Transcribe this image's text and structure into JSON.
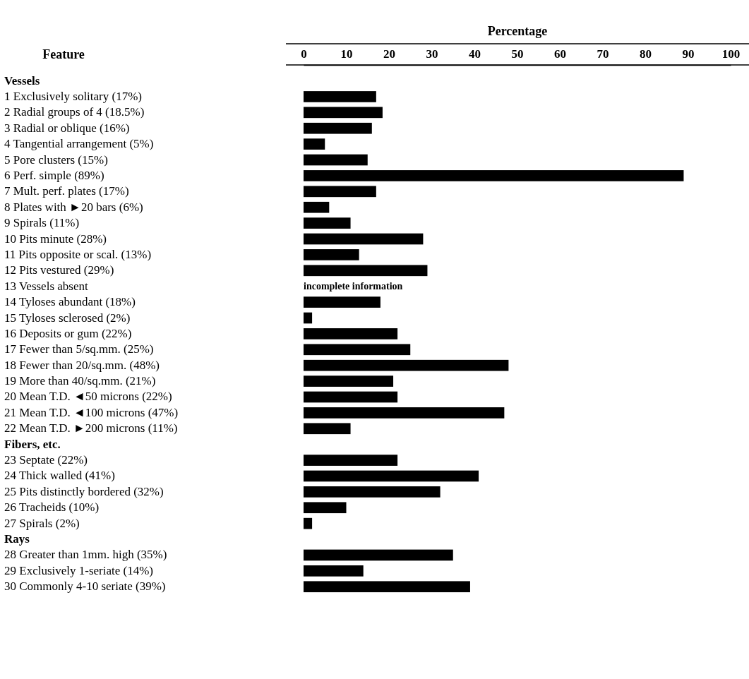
{
  "chart_data": {
    "type": "bar",
    "orientation": "horizontal",
    "x2label": "Percentage",
    "ylabel": "Feature",
    "categories": [
      "Vessels",
      "1 Exclusively solitary (17%)",
      "2 Radial groups of 4 (18.5%)",
      "3 Radial or oblique (16%)",
      "4 Tangential arrangement (5%)",
      "5 Pore clusters (15%)",
      "6 Perf. simple (89%)",
      "7 Mult. perf. plates (17%)",
      "8 Plates with ►20 bars (6%)",
      "9 Spirals (11%)",
      "10 Pits minute (28%)",
      "11 Pits opposite or scal. (13%)",
      "12 Pits vestured (29%)",
      "13 Vessels absent",
      "14 Tyloses abundant (18%)",
      "15 Tyloses sclerosed (2%)",
      "16 Deposits or gum (22%)",
      "17 Fewer than 5/sq.mm. (25%)",
      "18 Fewer than 20/sq.mm. (48%)",
      "19 More than 40/sq.mm. (21%)",
      "20 Mean T.D. ◄50 microns (22%)",
      "21 Mean T.D. ◄100 microns (47%)",
      "22 Mean T.D. ►200 microns (11%)",
      "Fibers, etc.",
      "23 Septate (22%)",
      "24 Thick walled (41%)",
      "25 Pits distinctly bordered (32%)",
      "26 Tracheids (10%)",
      "27 Spirals (2%)",
      "Rays",
      "28 Greater than 1mm. high (35%)",
      "29 Exclusively 1-seriate (14%)",
      "30 Commonly 4-10 seriate (39%)"
    ],
    "series": [
      {
        "color": "#000000",
        "axis": "x2",
        "values": [
          null,
          17,
          18.5,
          16,
          5,
          15,
          89,
          17,
          6,
          11,
          28,
          13,
          29,
          null,
          18,
          2,
          22,
          25,
          48,
          21,
          22,
          47,
          11,
          null,
          22,
          41,
          32,
          10,
          2,
          null,
          35,
          14,
          39
        ]
      }
    ],
    "x2lim": [
      0,
      100
    ],
    "x2ticks": [
      0,
      10,
      20,
      30,
      40,
      50,
      60,
      70,
      80,
      90,
      100
    ],
    "annotations": [
      "incomplete information"
    ]
  }
}
